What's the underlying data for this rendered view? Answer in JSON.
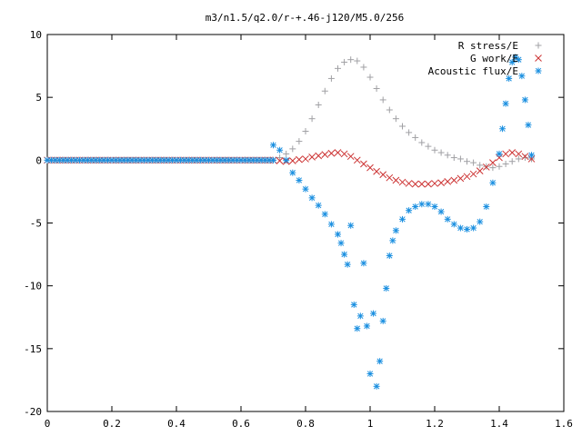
{
  "chart_data": {
    "type": "scatter",
    "title": "m3/n1.5/q2.0/r-+.46-j120/M5.0/256",
    "xlabel": "",
    "ylabel": "",
    "xlim": [
      0,
      1.6
    ],
    "ylim": [
      -20,
      10
    ],
    "xticks": [
      "0",
      "0.2",
      "0.4",
      "0.6",
      "0.8",
      "1",
      "1.2",
      "1.4",
      "1.6"
    ],
    "yticks": [
      "10",
      "5",
      "0",
      "-5",
      "-10",
      "-15",
      "-20"
    ],
    "grid": false,
    "legend_position": "top-right",
    "series": [
      {
        "name": "R stress/E",
        "marker": "plus",
        "color": "#a0a0a4",
        "x": [
          0.7,
          0.72,
          0.74,
          0.76,
          0.78,
          0.8,
          0.82,
          0.84,
          0.86,
          0.88,
          0.9,
          0.92,
          0.94,
          0.96,
          0.98,
          1.0,
          1.02,
          1.04,
          1.06,
          1.08,
          1.1,
          1.12,
          1.14,
          1.16,
          1.18,
          1.2,
          1.22,
          1.24,
          1.26,
          1.28,
          1.3,
          1.32,
          1.34,
          1.36,
          1.38,
          1.4,
          1.42,
          1.44,
          1.46,
          1.48,
          1.5
        ],
        "y": [
          0.0,
          0.2,
          0.5,
          0.9,
          1.5,
          2.3,
          3.3,
          4.4,
          5.5,
          6.5,
          7.3,
          7.8,
          8.0,
          7.9,
          7.4,
          6.6,
          5.7,
          4.8,
          4.0,
          3.3,
          2.7,
          2.2,
          1.8,
          1.4,
          1.1,
          0.8,
          0.6,
          0.4,
          0.2,
          0.1,
          -0.1,
          -0.2,
          -0.4,
          -0.5,
          -0.6,
          -0.5,
          -0.3,
          -0.1,
          0.1,
          0.2,
          0.1
        ]
      },
      {
        "name": "G work/E",
        "marker": "cross",
        "color": "#cc3333",
        "x": [
          0.7,
          0.72,
          0.74,
          0.76,
          0.78,
          0.8,
          0.82,
          0.84,
          0.86,
          0.88,
          0.9,
          0.92,
          0.94,
          0.96,
          0.98,
          1.0,
          1.02,
          1.04,
          1.06,
          1.08,
          1.1,
          1.12,
          1.14,
          1.16,
          1.18,
          1.2,
          1.22,
          1.24,
          1.26,
          1.28,
          1.3,
          1.32,
          1.34,
          1.36,
          1.38,
          1.4,
          1.42,
          1.44,
          1.46,
          1.48,
          1.5
        ],
        "y": [
          0.0,
          -0.05,
          -0.1,
          -0.05,
          0.05,
          0.1,
          0.25,
          0.35,
          0.45,
          0.55,
          0.6,
          0.5,
          0.3,
          0.0,
          -0.3,
          -0.6,
          -0.9,
          -1.15,
          -1.4,
          -1.6,
          -1.75,
          -1.85,
          -1.9,
          -1.9,
          -1.9,
          -1.85,
          -1.8,
          -1.7,
          -1.6,
          -1.45,
          -1.3,
          -1.1,
          -0.85,
          -0.55,
          -0.2,
          0.2,
          0.5,
          0.6,
          0.5,
          0.3,
          0.1
        ]
      },
      {
        "name": "Acoustic flux/E",
        "marker": "star",
        "color": "#1a8fe0",
        "x": [
          0.7,
          0.72,
          0.74,
          0.76,
          0.78,
          0.8,
          0.82,
          0.84,
          0.86,
          0.88,
          0.9,
          0.91,
          0.92,
          0.93,
          0.94,
          0.95,
          0.96,
          0.97,
          0.98,
          0.99,
          1.0,
          1.01,
          1.02,
          1.03,
          1.04,
          1.05,
          1.06,
          1.07,
          1.08,
          1.1,
          1.12,
          1.14,
          1.16,
          1.18,
          1.2,
          1.22,
          1.24,
          1.26,
          1.28,
          1.3,
          1.32,
          1.34,
          1.36,
          1.38,
          1.4,
          1.41,
          1.42,
          1.43,
          1.44,
          1.45,
          1.46,
          1.47,
          1.48,
          1.49,
          1.5
        ],
        "y": [
          1.2,
          0.8,
          0.0,
          -1.0,
          -1.6,
          -2.3,
          -3.0,
          -3.6,
          -4.3,
          -5.1,
          -5.9,
          -6.6,
          -7.5,
          -8.3,
          -5.2,
          -11.5,
          -13.4,
          -12.4,
          -8.2,
          -13.2,
          -17.0,
          -12.2,
          -18.0,
          -16.0,
          -12.8,
          -10.2,
          -7.6,
          -6.4,
          -5.6,
          -4.7,
          -4.0,
          -3.7,
          -3.5,
          -3.5,
          -3.7,
          -4.1,
          -4.7,
          -5.1,
          -5.4,
          -5.5,
          -5.4,
          -4.9,
          -3.7,
          -1.8,
          0.5,
          2.5,
          4.5,
          6.5,
          7.8,
          8.2,
          8.0,
          6.7,
          4.8,
          2.8,
          0.4
        ]
      }
    ]
  }
}
